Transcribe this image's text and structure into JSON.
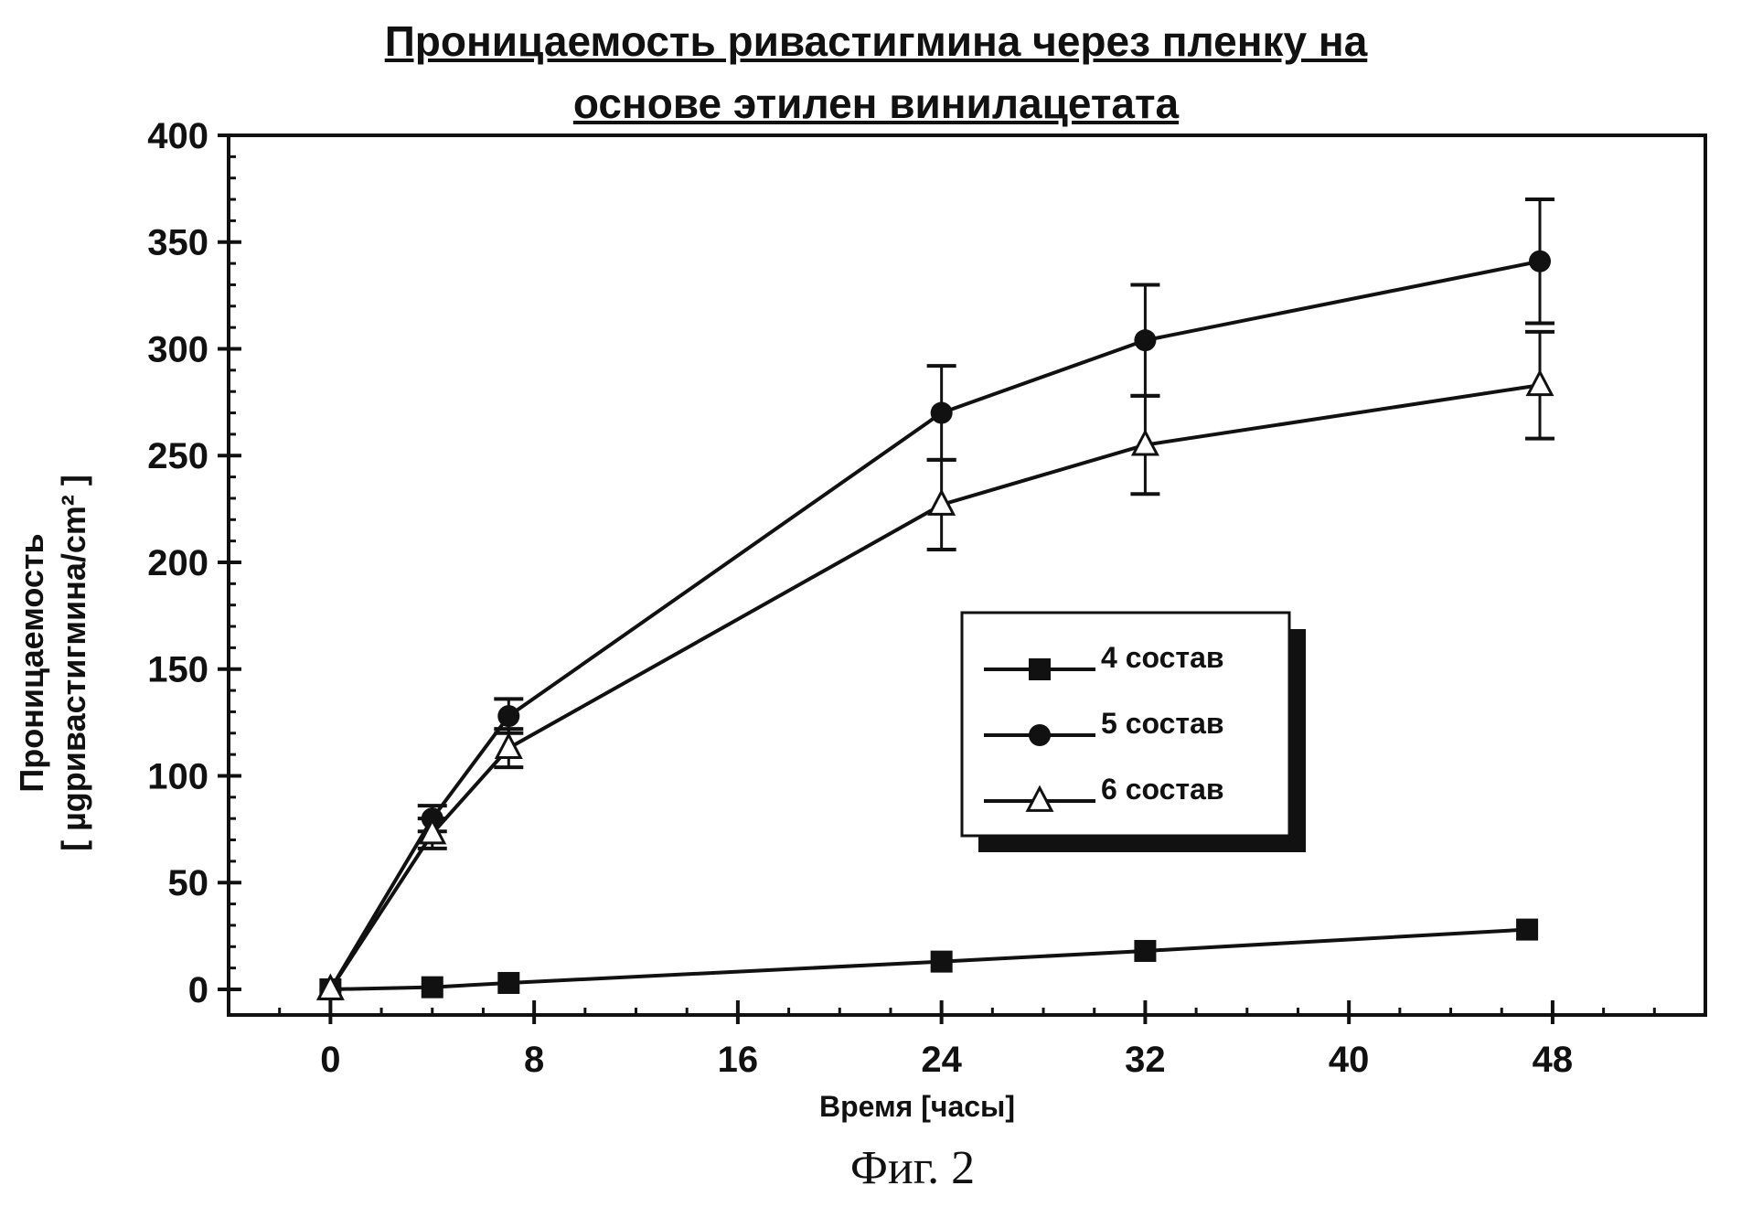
{
  "figure_caption": "Фиг. 2",
  "chart_data": {
    "type": "line",
    "title_lines": [
      "Проницаемость ривастигмина через пленку на",
      "основе этилен винилацетата"
    ],
    "xlabel": "Время [часы]",
    "ylabel_lines": [
      "Проницаемость",
      "[ µgривастигмина/cm² ]"
    ],
    "x_ticks": [
      0,
      8,
      16,
      24,
      32,
      40,
      48
    ],
    "y_ticks": [
      0,
      50,
      100,
      150,
      200,
      250,
      300,
      350,
      400
    ],
    "xlim": [
      -4,
      54
    ],
    "ylim": [
      -12,
      400
    ],
    "grid": false,
    "legend_position": "center-right",
    "series": [
      {
        "name": "4 состав",
        "marker": "square",
        "x": [
          0,
          4,
          7,
          24,
          32,
          47
        ],
        "y": [
          0,
          1,
          3,
          13,
          18,
          28
        ],
        "err": [
          0,
          0,
          0,
          0,
          0,
          0
        ]
      },
      {
        "name": "5 состав",
        "marker": "circle",
        "x": [
          0,
          4,
          7,
          24,
          32,
          47.5
        ],
        "y": [
          0,
          80,
          128,
          270,
          304,
          341
        ],
        "err": [
          0,
          6,
          8,
          22,
          26,
          29
        ]
      },
      {
        "name": "6 состав",
        "marker": "triangle",
        "x": [
          0,
          4,
          7,
          24,
          32,
          47.5
        ],
        "y": [
          0,
          73,
          113,
          227,
          255,
          283
        ],
        "err": [
          0,
          7,
          9,
          21,
          23,
          25
        ]
      }
    ]
  }
}
